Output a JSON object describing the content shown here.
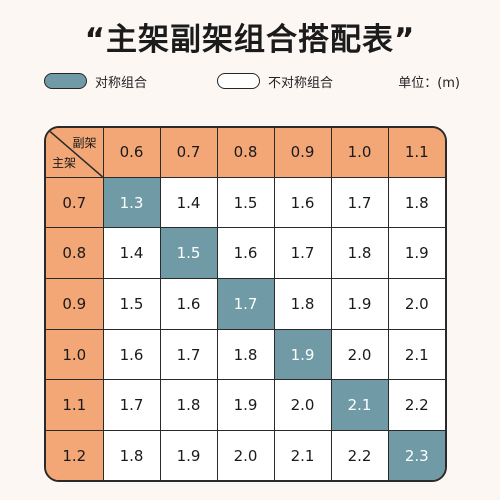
{
  "title": "“主架副架组合搭配表”",
  "legend": {
    "symmetric_label": "对称组合",
    "asymmetric_label": "不对称组合",
    "unit_label": "单位：(m)"
  },
  "colors": {
    "header_bg": "#f3a776",
    "symmetric_bg": "#6f9aa6",
    "cell_bg": "#ffffff"
  },
  "table": {
    "corner_top": "副架",
    "corner_bottom": "主架",
    "columns": [
      "0.6",
      "0.7",
      "0.8",
      "0.9",
      "1.0",
      "1.1"
    ],
    "rows": [
      {
        "label": "0.7",
        "values": [
          "1.3",
          "1.4",
          "1.5",
          "1.6",
          "1.7",
          "1.8"
        ],
        "symmetric_index": 0
      },
      {
        "label": "0.8",
        "values": [
          "1.4",
          "1.5",
          "1.6",
          "1.7",
          "1.8",
          "1.9"
        ],
        "symmetric_index": 1
      },
      {
        "label": "0.9",
        "values": [
          "1.5",
          "1.6",
          "1.7",
          "1.8",
          "1.9",
          "2.0"
        ],
        "symmetric_index": 2
      },
      {
        "label": "1.0",
        "values": [
          "1.6",
          "1.7",
          "1.8",
          "1.9",
          "2.0",
          "2.1"
        ],
        "symmetric_index": 3
      },
      {
        "label": "1.1",
        "values": [
          "1.7",
          "1.8",
          "1.9",
          "2.0",
          "2.1",
          "2.2"
        ],
        "symmetric_index": 4
      },
      {
        "label": "1.2",
        "values": [
          "1.8",
          "1.9",
          "2.0",
          "2.1",
          "2.2",
          "2.3"
        ],
        "symmetric_index": 5
      }
    ]
  }
}
